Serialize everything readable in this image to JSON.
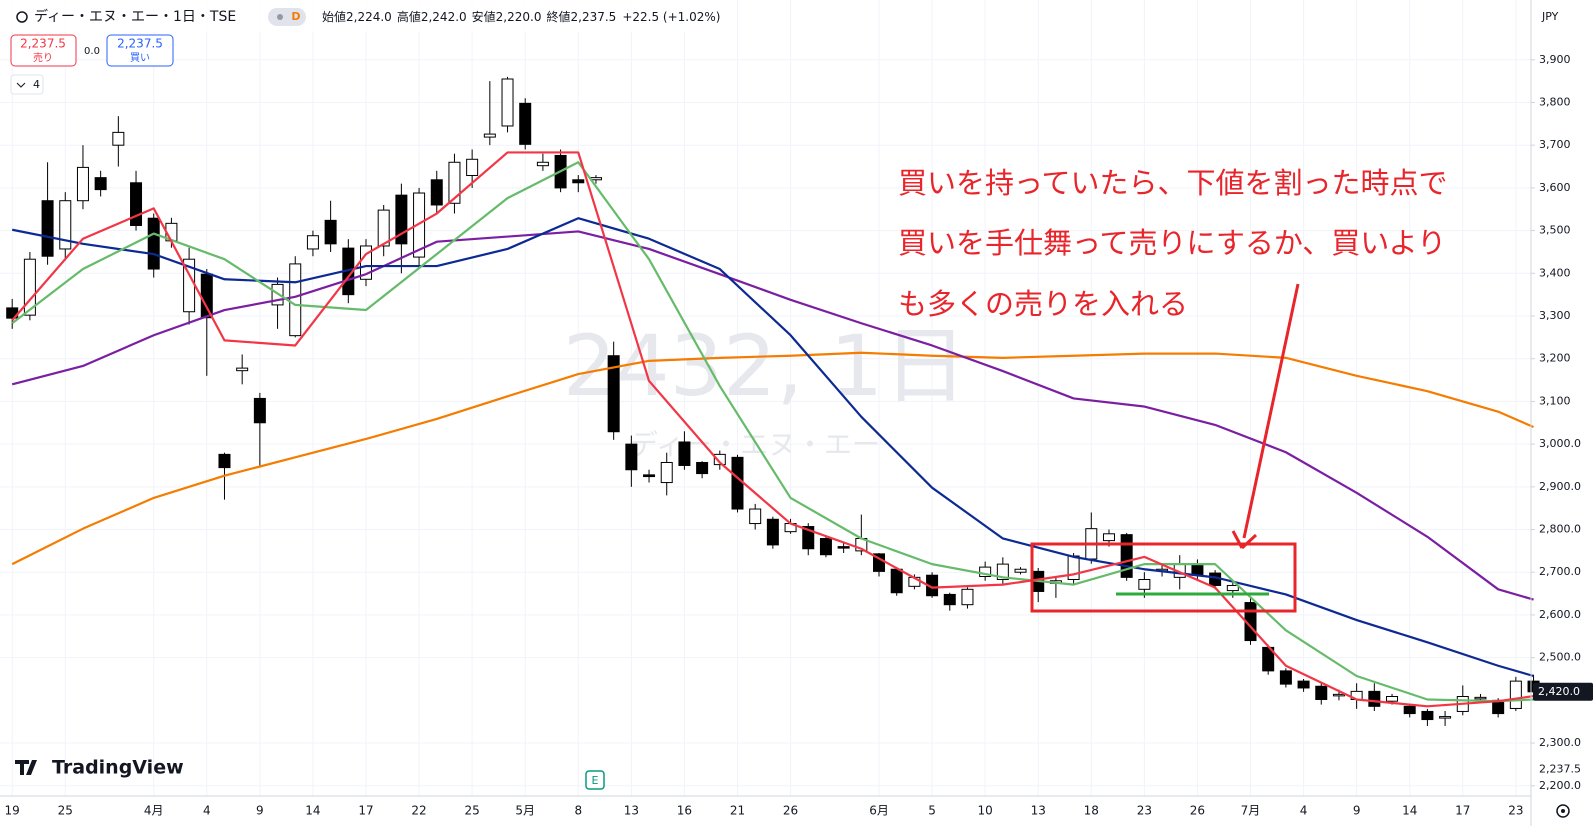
{
  "header": {
    "symbol": "ディー・エヌ・エー・1日・TSE",
    "interval_badge": "D",
    "ohlc": [
      {
        "label": "始値",
        "value": "2,224.0"
      },
      {
        "label": "高値",
        "value": "2,242.0"
      },
      {
        "label": "安値",
        "value": "2,220.0"
      },
      {
        "label": "終値",
        "value": "2,237.5"
      }
    ],
    "change": "+22.5 (+1.02%)",
    "sell_price": "2,237.5",
    "sell_label": "売り",
    "spread": "0.0",
    "buy_price": "2,237.5",
    "buy_label": "買い",
    "indicator_count": "4",
    "currency": "JPY"
  },
  "watermark": {
    "title": "2432, 1日",
    "name": "ディー・エヌ・エー"
  },
  "logo": "TradingView",
  "event_marker": "E",
  "annotation": [
    "買いを持っていたら、下値を割った時点で",
    "買いを手仕舞って売りにするか、買いより",
    "も多くの売りを入れる"
  ],
  "chart_data": {
    "type": "candlestick",
    "categories": [
      "19",
      null,
      null,
      "25",
      null,
      null,
      null,
      null,
      "4月",
      null,
      null,
      "4",
      null,
      null,
      "9",
      null,
      null,
      "14",
      null,
      null,
      "17",
      null,
      null,
      "22",
      null,
      null,
      "25",
      null,
      null,
      "5月",
      null,
      null,
      "8",
      null,
      null,
      "13",
      null,
      null,
      "16",
      null,
      null,
      "21",
      null,
      null,
      "26",
      null,
      null,
      null,
      null,
      "6月",
      null,
      null,
      "5",
      null,
      null,
      "10",
      null,
      null,
      "13",
      null,
      null,
      "18",
      null,
      null,
      "23",
      null,
      null,
      "26",
      null,
      null,
      "7月",
      null,
      null,
      "4",
      null,
      null,
      "9",
      null,
      null,
      "14",
      null,
      null,
      "17",
      null,
      null,
      "23",
      null
    ],
    "open": [
      3319,
      3302,
      3570,
      3457,
      3570,
      3624,
      3700,
      3612,
      3529,
      3476,
      3310,
      3398,
      2976,
      3172,
      3107,
      3326,
      3254,
      3457,
      3524,
      3459,
      3386,
      3464,
      3583,
      3438,
      3619,
      3564,
      3629,
      3719,
      3745,
      3798,
      3652,
      3676,
      3619,
      3619,
      3207,
      3000,
      2928,
      2910,
      3005,
      2957,
      2952,
      2969,
      2814,
      2824,
      2795,
      2807,
      2779,
      2760,
      2750,
      2743,
      2707,
      2667,
      2693,
      2648,
      2624,
      2690,
      2683,
      2700,
      2702,
      2674,
      2683,
      2731,
      2774,
      2788,
      2660,
      2705,
      2688,
      2717,
      2698,
      2657,
      2629,
      2524,
      2469,
      2445,
      2433,
      2412,
      2402,
      2421,
      2398,
      2386,
      2374,
      2360,
      2374,
      2405,
      2400,
      2381,
      2445
    ],
    "high": [
      3340,
      3450,
      3660,
      3590,
      3700,
      3640,
      3768,
      3640,
      3540,
      3530,
      3460,
      3410,
      2980,
      3210,
      3120,
      3390,
      3440,
      3500,
      3570,
      3480,
      3480,
      3560,
      3610,
      3600,
      3640,
      3680,
      3690,
      3850,
      3860,
      3810,
      3680,
      3690,
      3630,
      3630,
      3240,
      3020,
      2940,
      2980,
      3030,
      2960,
      2985,
      2975,
      2860,
      2830,
      2825,
      2815,
      2785,
      2770,
      2835,
      2745,
      2712,
      2695,
      2700,
      2652,
      2665,
      2725,
      2735,
      2712,
      2710,
      2690,
      2745,
      2840,
      2800,
      2792,
      2700,
      2720,
      2740,
      2730,
      2705,
      2675,
      2640,
      2530,
      2475,
      2450,
      2440,
      2425,
      2440,
      2440,
      2415,
      2390,
      2380,
      2375,
      2435,
      2415,
      2405,
      2455,
      2460
    ],
    "low": [
      3270,
      3290,
      3420,
      3430,
      3550,
      3580,
      3650,
      3500,
      3390,
      3460,
      3280,
      3160,
      2870,
      3140,
      2950,
      3270,
      3250,
      3440,
      3450,
      3330,
      3370,
      3440,
      3400,
      3410,
      3540,
      3540,
      3600,
      3700,
      3730,
      3690,
      3640,
      3590,
      3590,
      3610,
      3010,
      2900,
      2910,
      2880,
      2940,
      2920,
      2940,
      2840,
      2800,
      2755,
      2790,
      2740,
      2735,
      2745,
      2740,
      2690,
      2645,
      2660,
      2640,
      2610,
      2615,
      2680,
      2670,
      2695,
      2630,
      2640,
      2670,
      2720,
      2760,
      2680,
      2640,
      2690,
      2660,
      2680,
      2660,
      2640,
      2530,
      2460,
      2430,
      2420,
      2390,
      2400,
      2380,
      2375,
      2390,
      2360,
      2340,
      2340,
      2365,
      2395,
      2360,
      2375,
      2410
    ],
    "close": [
      3295,
      3433,
      3440,
      3570,
      3648,
      3596,
      3730,
      3512,
      3410,
      3517,
      3433,
      3296,
      2945,
      3178,
      3050,
      3374,
      3422,
      3488,
      3469,
      3350,
      3464,
      3548,
      3469,
      3588,
      3560,
      3660,
      3667,
      3726,
      3855,
      3702,
      3660,
      3600,
      3612,
      3624,
      3029,
      2940,
      2924,
      2957,
      2950,
      2931,
      2976,
      2848,
      2848,
      2764,
      2814,
      2755,
      2741,
      2757,
      2779,
      2702,
      2652,
      2688,
      2645,
      2624,
      2660,
      2712,
      2719,
      2707,
      2655,
      2680,
      2738,
      2802,
      2790,
      2688,
      2683,
      2707,
      2719,
      2693,
      2669,
      2669,
      2540,
      2469,
      2438,
      2429,
      2402,
      2414,
      2421,
      2386,
      2409,
      2369,
      2355,
      2362,
      2409,
      2407,
      2369,
      2445,
      2420
    ],
    "up_color": "#ffffff",
    "down_color": "#000000",
    "lines": [
      {
        "color": "#f57c00",
        "x": [
          0,
          4,
          8,
          12,
          16,
          20,
          24,
          28,
          32,
          36,
          40,
          44,
          48,
          52,
          56,
          60,
          64,
          68,
          72,
          76,
          80,
          84,
          86
        ],
        "values": [
          2719,
          2802,
          2874,
          2926,
          2969,
          3012,
          3059,
          3112,
          3164,
          3195,
          3202,
          3207,
          3214,
          3207,
          3202,
          3207,
          3212,
          3212,
          3202,
          3160,
          3124,
          3076,
          3040
        ]
      },
      {
        "color": "#7b1fa2",
        "x": [
          0,
          4,
          8,
          12,
          16,
          20,
          24,
          28,
          32,
          36,
          40,
          44,
          48,
          52,
          56,
          60,
          64,
          68,
          72,
          76,
          80,
          84,
          86
        ],
        "values": [
          3140,
          3183,
          3255,
          3314,
          3345,
          3398,
          3474,
          3486,
          3498,
          3457,
          3398,
          3338,
          3283,
          3231,
          3171,
          3107,
          3088,
          3045,
          2981,
          2886,
          2783,
          2660,
          2636
        ]
      },
      {
        "color": "#0d2a94",
        "x": [
          0,
          4,
          8,
          12,
          16,
          20,
          24,
          28,
          32,
          36,
          40,
          44,
          48,
          52,
          56,
          60,
          64,
          68,
          72,
          76,
          80,
          84,
          86
        ],
        "values": [
          3502,
          3469,
          3445,
          3386,
          3379,
          3417,
          3417,
          3457,
          3529,
          3481,
          3410,
          3255,
          3064,
          2898,
          2779,
          2736,
          2707,
          2688,
          2648,
          2588,
          2536,
          2481,
          2457
        ]
      },
      {
        "color": "#66bb6a",
        "x": [
          0,
          4,
          8,
          12,
          16,
          20,
          24,
          28,
          32,
          36,
          40,
          44,
          48,
          52,
          56,
          60,
          64,
          68,
          72,
          76,
          80,
          84,
          86
        ],
        "values": [
          3283,
          3410,
          3493,
          3433,
          3326,
          3314,
          3445,
          3576,
          3660,
          3433,
          3136,
          2874,
          2779,
          2719,
          2688,
          2671,
          2719,
          2719,
          2564,
          2457,
          2402,
          2398,
          2402
        ]
      },
      {
        "color": "#f23645",
        "x": [
          0,
          4,
          8,
          12,
          16,
          20,
          24,
          28,
          32,
          36,
          40,
          44,
          48,
          52,
          56,
          60,
          64,
          68,
          72,
          76,
          80,
          84,
          86
        ],
        "values": [
          3290,
          3481,
          3552,
          3243,
          3231,
          3445,
          3540,
          3683,
          3683,
          3148,
          2957,
          2814,
          2755,
          2664,
          2671,
          2695,
          2736,
          2664,
          2481,
          2402,
          2386,
          2398,
          2410
        ]
      }
    ],
    "ylim": [
      2176,
      4040
    ],
    "yticks": [
      {
        "value": 2200,
        "label": "2,200.0"
      },
      {
        "value": 2300,
        "label": "2,300.0"
      },
      {
        "value": 2500,
        "label": "2,500.0"
      },
      {
        "value": 2600,
        "label": "2,600.0"
      },
      {
        "value": 2700,
        "label": "2,700.0"
      },
      {
        "value": 2800,
        "label": "2,800.0"
      },
      {
        "value": 2900,
        "label": "2,900.0"
      },
      {
        "value": 3000,
        "label": "3,000.0"
      },
      {
        "value": 3100,
        "label": "3,100"
      },
      {
        "value": 3200,
        "label": "3,200"
      },
      {
        "value": 3300,
        "label": "3,300"
      },
      {
        "value": 3400,
        "label": "3,400"
      },
      {
        "value": 3500,
        "label": "3,500"
      },
      {
        "value": 3600,
        "label": "3,600"
      },
      {
        "value": 3700,
        "label": "3,700"
      },
      {
        "value": 3800,
        "label": "3,800"
      },
      {
        "value": 3900,
        "label": "3,900"
      }
    ],
    "last_price": {
      "value": 2420,
      "label": "2,420.0"
    },
    "current_price": {
      "value": 2237.5,
      "label": "2,237.5"
    },
    "grid": true
  }
}
